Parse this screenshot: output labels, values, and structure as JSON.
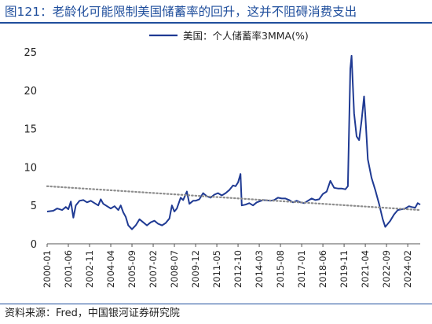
{
  "title": "图121：老龄化可能限制美国储蓄率的回升，这并不阻碍消费支出",
  "source": "资料来源：Fred，中国银河证券研究院",
  "colors": {
    "line": "#1f3a93",
    "trend": "#8c8c8c",
    "title": "#1f4e9c"
  },
  "chart_data": {
    "type": "line",
    "legend": [
      "美国：个人储蓄率3MMA(%)"
    ],
    "legend_placement": "top-center",
    "ylim": [
      0,
      25
    ],
    "y_ticks": [
      "0",
      "5",
      "10",
      "15",
      "20",
      "25"
    ],
    "x_ticks": [
      "2000-01",
      "2001-06",
      "2002-11",
      "2004-04",
      "2005-09",
      "2007-02",
      "2008-07",
      "2009-12",
      "2011-05",
      "2012-10",
      "2014-03",
      "2015-08",
      "2017-01",
      "2018-06",
      "2019-11",
      "2021-04",
      "2022-09",
      "2024-02"
    ],
    "x_range": [
      "2000-01",
      "2024-12"
    ],
    "series": [
      {
        "name": "美国：个人储蓄率3MMA(%)",
        "style": "solid",
        "points": [
          [
            "2000-01",
            4.2
          ],
          [
            "2000-06",
            4.3
          ],
          [
            "2000-09",
            4.6
          ],
          [
            "2001-01",
            4.4
          ],
          [
            "2001-04",
            4.8
          ],
          [
            "2001-06",
            4.5
          ],
          [
            "2001-08",
            5.5
          ],
          [
            "2001-10",
            3.4
          ],
          [
            "2001-12",
            5.0
          ],
          [
            "2002-03",
            5.6
          ],
          [
            "2002-06",
            5.7
          ],
          [
            "2002-09",
            5.4
          ],
          [
            "2002-12",
            5.6
          ],
          [
            "2003-03",
            5.3
          ],
          [
            "2003-06",
            5.0
          ],
          [
            "2003-08",
            5.8
          ],
          [
            "2003-10",
            5.2
          ],
          [
            "2004-01",
            4.9
          ],
          [
            "2004-04",
            4.6
          ],
          [
            "2004-07",
            4.9
          ],
          [
            "2004-10",
            4.4
          ],
          [
            "2004-12",
            5.0
          ],
          [
            "2005-02",
            4.1
          ],
          [
            "2005-04",
            3.5
          ],
          [
            "2005-06",
            2.4
          ],
          [
            "2005-09",
            1.9
          ],
          [
            "2005-12",
            2.4
          ],
          [
            "2006-03",
            3.2
          ],
          [
            "2006-06",
            2.8
          ],
          [
            "2006-09",
            2.4
          ],
          [
            "2006-12",
            2.8
          ],
          [
            "2007-03",
            3.0
          ],
          [
            "2007-06",
            2.6
          ],
          [
            "2007-09",
            2.4
          ],
          [
            "2007-12",
            2.7
          ],
          [
            "2008-03",
            3.3
          ],
          [
            "2008-05",
            5.0
          ],
          [
            "2008-07",
            4.2
          ],
          [
            "2008-09",
            4.6
          ],
          [
            "2008-12",
            6.0
          ],
          [
            "2009-02",
            5.7
          ],
          [
            "2009-05",
            6.8
          ],
          [
            "2009-07",
            5.2
          ],
          [
            "2009-10",
            5.6
          ],
          [
            "2009-12",
            5.6
          ],
          [
            "2010-03",
            5.8
          ],
          [
            "2010-06",
            6.6
          ],
          [
            "2010-09",
            6.2
          ],
          [
            "2010-12",
            6.0
          ],
          [
            "2011-03",
            6.4
          ],
          [
            "2011-06",
            6.6
          ],
          [
            "2011-09",
            6.3
          ],
          [
            "2011-12",
            6.6
          ],
          [
            "2012-03",
            7.0
          ],
          [
            "2012-06",
            7.6
          ],
          [
            "2012-08",
            7.5
          ],
          [
            "2012-10",
            8.0
          ],
          [
            "2012-12",
            9.1
          ],
          [
            "2013-01",
            5.0
          ],
          [
            "2013-04",
            5.1
          ],
          [
            "2013-07",
            5.3
          ],
          [
            "2013-10",
            5.0
          ],
          [
            "2014-01",
            5.4
          ],
          [
            "2014-06",
            5.7
          ],
          [
            "2014-12",
            5.6
          ],
          [
            "2015-03",
            5.7
          ],
          [
            "2015-06",
            6.0
          ],
          [
            "2015-09",
            5.9
          ],
          [
            "2015-12",
            5.9
          ],
          [
            "2016-03",
            5.7
          ],
          [
            "2016-06",
            5.4
          ],
          [
            "2016-09",
            5.6
          ],
          [
            "2016-12",
            5.4
          ],
          [
            "2017-03",
            5.3
          ],
          [
            "2017-06",
            5.6
          ],
          [
            "2017-09",
            5.9
          ],
          [
            "2017-12",
            5.7
          ],
          [
            "2018-03",
            5.8
          ],
          [
            "2018-06",
            6.5
          ],
          [
            "2018-09",
            6.8
          ],
          [
            "2018-12",
            8.2
          ],
          [
            "2019-03",
            7.3
          ],
          [
            "2019-06",
            7.2
          ],
          [
            "2019-09",
            7.2
          ],
          [
            "2019-12",
            7.1
          ],
          [
            "2020-02",
            7.5
          ],
          [
            "2020-04",
            22.8
          ],
          [
            "2020-05",
            24.5
          ],
          [
            "2020-07",
            17.0
          ],
          [
            "2020-09",
            14.0
          ],
          [
            "2020-11",
            13.5
          ],
          [
            "2021-01",
            16.0
          ],
          [
            "2021-03",
            19.2
          ],
          [
            "2021-04",
            16.8
          ],
          [
            "2021-06",
            11.0
          ],
          [
            "2021-09",
            8.6
          ],
          [
            "2021-12",
            7.0
          ],
          [
            "2022-03",
            5.2
          ],
          [
            "2022-06",
            3.2
          ],
          [
            "2022-08",
            2.2
          ],
          [
            "2022-10",
            2.6
          ],
          [
            "2022-12",
            3.0
          ],
          [
            "2023-03",
            3.8
          ],
          [
            "2023-06",
            4.4
          ],
          [
            "2023-09",
            4.5
          ],
          [
            "2023-12",
            4.6
          ],
          [
            "2024-03",
            4.9
          ],
          [
            "2024-05",
            4.8
          ],
          [
            "2024-08",
            4.7
          ],
          [
            "2024-10",
            5.3
          ],
          [
            "2024-12",
            5.1
          ]
        ]
      },
      {
        "style": "dotted",
        "points": [
          [
            "2000-01",
            7.5
          ],
          [
            "2024-12",
            4.4
          ]
        ]
      }
    ]
  }
}
